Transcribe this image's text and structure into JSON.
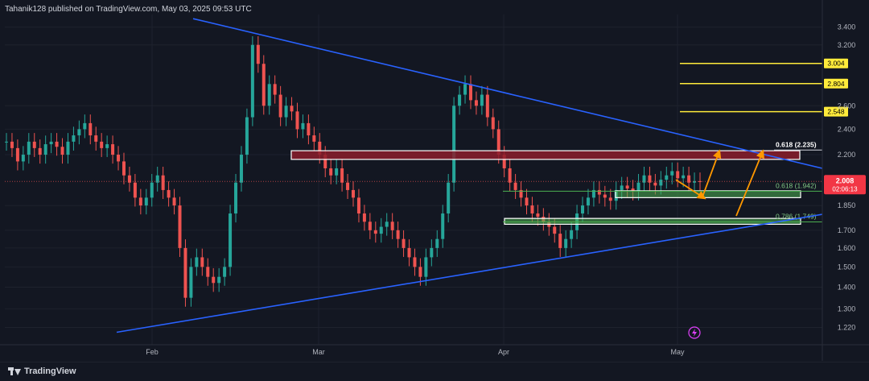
{
  "header": {
    "publish_text": "Tahanik128 published on TradingView.com, May 03, 2025 09:53 UTC"
  },
  "footer": {
    "brand": "TradingView"
  },
  "colors": {
    "bull": "#26a69a",
    "bear": "#ef5350",
    "trend": "#2962ff",
    "target": "#ffeb3b",
    "fib_green": "#4caf50",
    "resistance": "#8b1d2c",
    "arrow": "#ff9800"
  },
  "chart_data": {
    "type": "candlestick",
    "x_axis": {
      "tick_labels": [
        "Feb",
        "Mar",
        "Apr",
        "May"
      ]
    },
    "y_axis": {
      "scale": "log",
      "range": [
        1.15,
        3.55
      ],
      "tick_labels": [
        "3.400",
        "3.200",
        "2.600",
        "2.400",
        "2.200",
        "1.850",
        "1.700",
        "1.600",
        "1.500",
        "1.400",
        "1.300",
        "1.220"
      ],
      "tick_values": [
        3.4,
        3.2,
        2.6,
        2.4,
        2.2,
        1.85,
        1.7,
        1.6,
        1.5,
        1.4,
        1.3,
        1.22
      ]
    },
    "current_price": {
      "label": "2.008",
      "value": 2.008,
      "countdown": "02:06:13"
    },
    "target_levels": [
      {
        "label": "3.004",
        "value": 3.004
      },
      {
        "label": "2.804",
        "value": 2.804
      },
      {
        "label": "2.548",
        "value": 2.548
      }
    ],
    "zones": [
      {
        "name": "resistance-zone",
        "top": 2.23,
        "bottom": 2.165,
        "label": "0.618 (2.235)",
        "label_value": 2.235
      },
      {
        "name": "support-zone-upper",
        "top": 1.945,
        "bottom": 1.9,
        "label": "0.618 (1.942)",
        "label_value": 1.942
      },
      {
        "name": "support-zone-lower",
        "top": 1.77,
        "bottom": 1.735,
        "label": "0.786 (1.749)",
        "label_value": 1.749
      }
    ],
    "trendlines": [
      {
        "name": "upper-trendline",
        "from": {
          "x": 240,
          "y": 3.5
        },
        "to": {
          "x": 1022,
          "y": 2.1
        }
      },
      {
        "name": "lower-trendline",
        "from": {
          "x": 145,
          "y": 1.2
        },
        "to": {
          "x": 1022,
          "y": 1.795
        }
      }
    ],
    "candles_close": [
      2.3,
      2.25,
      2.15,
      2.2,
      2.3,
      2.25,
      2.2,
      2.28,
      2.3,
      2.26,
      2.2,
      2.3,
      2.35,
      2.4,
      2.45,
      2.35,
      2.3,
      2.25,
      2.28,
      2.2,
      2.15,
      2.05,
      2.0,
      1.9,
      1.85,
      1.9,
      2.0,
      2.05,
      1.95,
      1.9,
      1.85,
      1.6,
      1.35,
      1.5,
      1.55,
      1.5,
      1.45,
      1.42,
      1.45,
      1.5,
      1.8,
      2.0,
      2.2,
      2.5,
      3.2,
      3.0,
      2.6,
      2.8,
      2.7,
      2.5,
      2.6,
      2.55,
      2.4,
      2.45,
      2.35,
      2.3,
      2.2,
      2.1,
      2.05,
      2.1,
      2.0,
      1.95,
      1.9,
      1.8,
      1.75,
      1.7,
      1.68,
      1.72,
      1.75,
      1.7,
      1.65,
      1.6,
      1.55,
      1.5,
      1.45,
      1.55,
      1.6,
      1.65,
      1.8,
      2.0,
      2.6,
      2.7,
      2.8,
      2.65,
      2.6,
      2.7,
      2.5,
      2.4,
      2.2,
      2.1,
      2.0,
      1.95,
      1.9,
      1.85,
      1.8,
      1.78,
      1.75,
      1.72,
      1.68,
      1.6,
      1.65,
      1.7,
      1.8,
      1.85,
      1.9,
      1.95,
      1.92,
      1.9,
      1.88,
      1.95,
      1.98,
      1.96,
      1.94,
      2.0,
      2.05,
      2.0,
      1.98,
      2.02,
      2.05,
      2.08,
      2.03,
      2.05,
      2.0,
      2.01,
      2.008
    ]
  }
}
